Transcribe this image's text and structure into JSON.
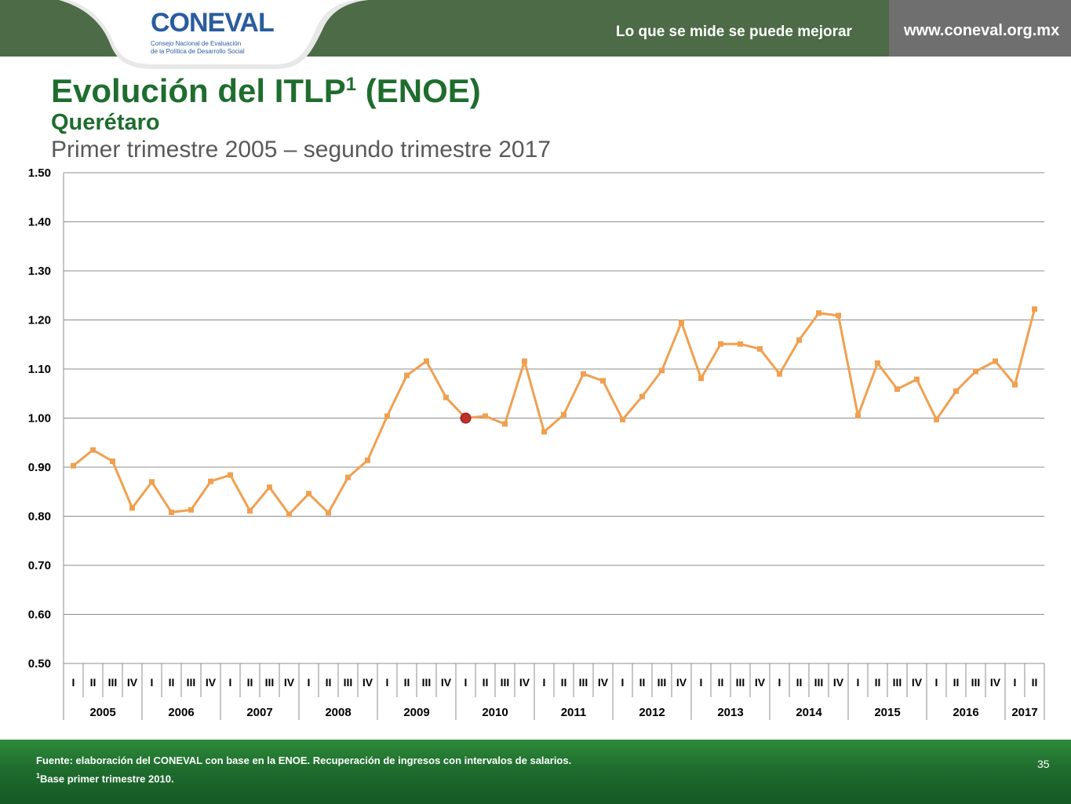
{
  "header": {
    "logo_text": "CONEVAL",
    "logo_sub1": "Consejo Nacional de Evaluación",
    "logo_sub2": "de la Política de Desarrollo Social",
    "tagline": "Lo que se mide se puede mejorar",
    "website": "www.coneval.org.mx"
  },
  "title": "Evolución del ITLP",
  "title_sup": "1",
  "title_suffix": " (ENOE)",
  "subtitle": "Querétaro",
  "period": "Primer trimestre 2005 – segundo trimestre 2017",
  "footer": {
    "source": "Fuente: elaboración del CONEVAL con base en la ENOE. Recuperación de ingresos con intervalos de salarios.",
    "note_sup": "1",
    "note": "Base primer trimestre 2010.",
    "page": "35"
  },
  "colors": {
    "header_green": "#4c6b46",
    "title_green": "#1f6d2e",
    "line": "#f0a050",
    "marker_base": "#c0302a"
  },
  "chart_data": {
    "type": "line",
    "ylim": [
      0.5,
      1.5
    ],
    "yticks": [
      "0.50",
      "0.60",
      "0.70",
      "0.80",
      "0.90",
      "1.00",
      "1.10",
      "1.20",
      "1.30",
      "1.40",
      "1.50"
    ],
    "quarter_labels": [
      "I",
      "II",
      "III",
      "IV"
    ],
    "years": [
      {
        "label": "2005",
        "quarters": 4
      },
      {
        "label": "2006",
        "quarters": 4
      },
      {
        "label": "2007",
        "quarters": 4
      },
      {
        "label": "2008",
        "quarters": 4
      },
      {
        "label": "2009",
        "quarters": 4
      },
      {
        "label": "2010",
        "quarters": 4
      },
      {
        "label": "2011",
        "quarters": 4
      },
      {
        "label": "2012",
        "quarters": 4
      },
      {
        "label": "2013",
        "quarters": 4
      },
      {
        "label": "2014",
        "quarters": 4
      },
      {
        "label": "2015",
        "quarters": 4
      },
      {
        "label": "2016",
        "quarters": 4
      },
      {
        "label": "2017",
        "quarters": 2
      }
    ],
    "values": [
      0.903,
      0.935,
      0.912,
      0.817,
      0.87,
      0.808,
      0.813,
      0.871,
      0.884,
      0.811,
      0.859,
      0.804,
      0.846,
      0.807,
      0.879,
      0.914,
      1.004,
      1.087,
      1.116,
      1.042,
      1.0,
      1.004,
      0.988,
      1.116,
      0.972,
      1.007,
      1.09,
      1.076,
      0.997,
      1.044,
      1.097,
      1.195,
      1.081,
      1.151,
      1.151,
      1.141,
      1.09,
      1.159,
      1.214,
      1.209,
      1.005,
      1.112,
      1.059,
      1.079,
      0.997,
      1.055,
      1.095,
      1.116,
      1.068,
      1.222
    ],
    "base_index": 20
  }
}
